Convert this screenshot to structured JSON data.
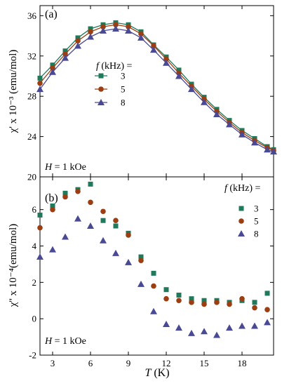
{
  "colors": {
    "f3": "#1e7a5a",
    "f5": "#9c3d12",
    "f8": "#4a4a94"
  },
  "chart_data": [
    {
      "type": "line",
      "panel_label": "(a)",
      "ylabel": "χ' x 10⁻³  (emu/mol)",
      "xlim": [
        2,
        20.5
      ],
      "ylim": [
        20,
        37
      ],
      "yticks": [
        20,
        24,
        28,
        32,
        36
      ],
      "xticks": [
        3,
        6,
        9,
        12,
        15,
        18
      ],
      "annotation": {
        "prefix": "H",
        "text": " = 1 kOe"
      },
      "legend": {
        "title_prefix": "f",
        "title_rest": " (kHz) =",
        "placement": "upper-middle"
      },
      "x": [
        2,
        3,
        4,
        5,
        6,
        7,
        8,
        9,
        10,
        11,
        12,
        13,
        14,
        15,
        16,
        17,
        18,
        19,
        20,
        20.5
      ],
      "series": [
        {
          "name": "3",
          "marker": "square",
          "values": [
            29.8,
            31.1,
            32.5,
            33.8,
            34.7,
            35.1,
            35.3,
            35.1,
            34.4,
            33.1,
            31.9,
            30.6,
            29.2,
            27.9,
            26.7,
            25.6,
            24.6,
            23.8,
            23.0,
            22.7
          ]
        },
        {
          "name": "5",
          "marker": "circle",
          "values": [
            29.3,
            30.8,
            32.2,
            33.5,
            34.4,
            34.9,
            35.1,
            34.9,
            34.2,
            33.0,
            31.7,
            30.3,
            29.0,
            27.7,
            26.5,
            25.4,
            24.4,
            23.6,
            22.9,
            22.6
          ]
        },
        {
          "name": "8",
          "marker": "triangle",
          "values": [
            28.7,
            30.4,
            31.8,
            33.0,
            33.9,
            34.5,
            34.7,
            34.5,
            33.8,
            32.6,
            31.3,
            30.0,
            28.7,
            27.4,
            26.2,
            25.2,
            24.2,
            23.4,
            22.7,
            22.5
          ]
        }
      ]
    },
    {
      "type": "scatter",
      "panel_label": "(b)",
      "ylabel": "χ'' x 10⁻⁴(emu/mol)",
      "xlabel_italic": "T",
      "xlabel_rest": " (K)",
      "xlim": [
        2,
        20.5
      ],
      "ylim": [
        -2,
        7.8
      ],
      "yticks": [
        -2,
        0,
        2,
        4,
        6
      ],
      "xticks": [
        3,
        6,
        9,
        12,
        15,
        18
      ],
      "annotation": {
        "prefix": "H",
        "text": " = 1 kOe"
      },
      "legend": {
        "title_prefix": "f",
        "title_rest": " (kHz) =",
        "placement": "top-right"
      },
      "x": [
        2,
        3,
        4,
        5,
        6,
        7,
        8,
        9,
        10,
        11,
        12,
        13,
        14,
        15,
        16,
        17,
        18,
        19,
        20
      ],
      "series": [
        {
          "name": "3",
          "marker": "square",
          "values": [
            5.7,
            6.2,
            6.9,
            7.1,
            7.4,
            5.4,
            5.1,
            4.7,
            3.4,
            2.5,
            1.6,
            1.3,
            1.1,
            1.0,
            1.0,
            0.9,
            1.0,
            0.9,
            1.4
          ]
        },
        {
          "name": "5",
          "marker": "circle",
          "values": [
            5.0,
            6.0,
            6.7,
            7.0,
            6.4,
            5.9,
            5.4,
            4.6,
            3.2,
            1.8,
            1.1,
            1.0,
            0.9,
            0.8,
            0.9,
            0.8,
            1.1,
            0.6,
            0.5
          ]
        },
        {
          "name": "8",
          "marker": "triangle",
          "values": [
            3.4,
            3.8,
            4.5,
            5.5,
            5.1,
            4.3,
            3.6,
            3.1,
            1.9,
            0.4,
            -0.3,
            -0.5,
            -0.8,
            -0.7,
            -0.9,
            -0.5,
            -0.4,
            -0.4,
            -0.2
          ]
        }
      ]
    }
  ]
}
